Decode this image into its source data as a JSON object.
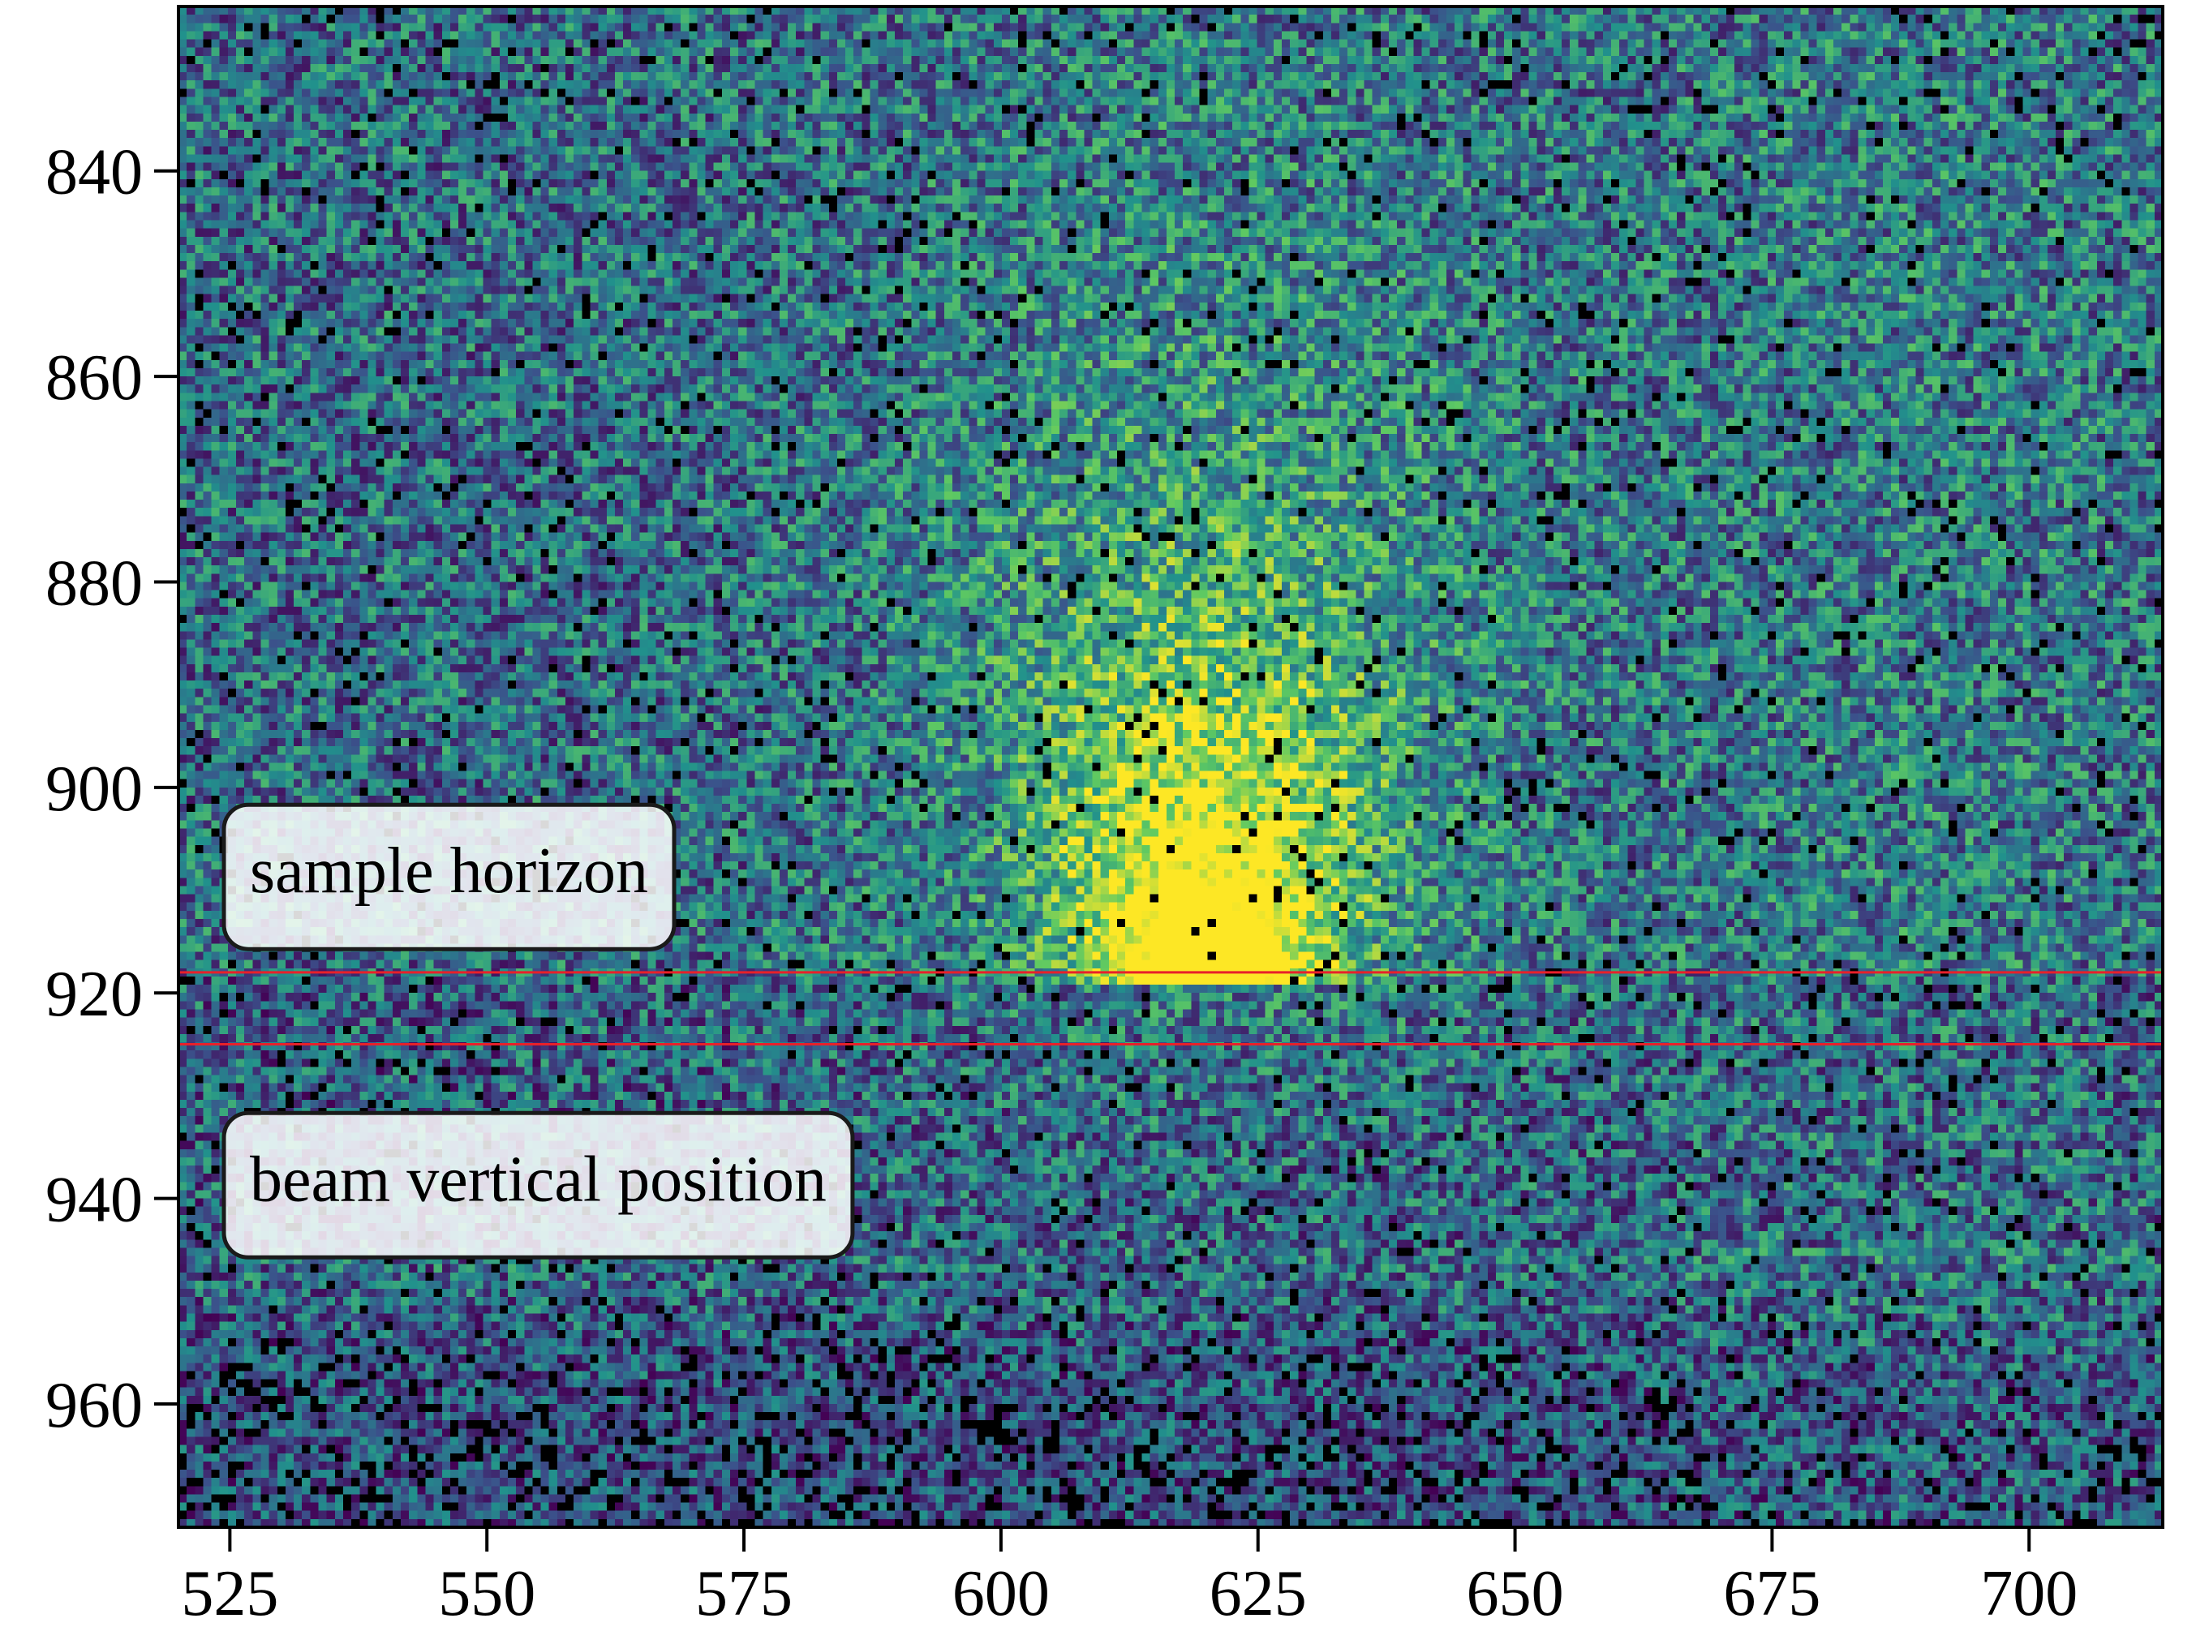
{
  "chart_data": {
    "type": "heatmap",
    "title": "",
    "xlabel": "",
    "ylabel": "",
    "xlim": [
      520,
      713
    ],
    "ylim": [
      824,
      972
    ],
    "y_inverted": true,
    "colormap": "viridis",
    "grid": false,
    "x_ticks": [
      525,
      550,
      575,
      600,
      625,
      650,
      675,
      700
    ],
    "y_ticks": [
      840,
      860,
      880,
      900,
      920,
      940,
      960
    ],
    "intensity_model": {
      "peak_center_x": 620,
      "peak_rows": [
        890,
        918
      ],
      "sample_horizon_row": 918,
      "bright_streak_x_range": [
        590,
        655
      ]
    },
    "lines": [
      {
        "name": "sample horizon",
        "y": 918,
        "color": "#e8202a"
      },
      {
        "name": "beam vertical position",
        "y": 925,
        "color": "#e8202a"
      }
    ],
    "annotations": [
      {
        "text": "sample horizon",
        "x": 523,
        "y": 908
      },
      {
        "text": "beam vertical position",
        "x": 523,
        "y": 938
      }
    ]
  }
}
